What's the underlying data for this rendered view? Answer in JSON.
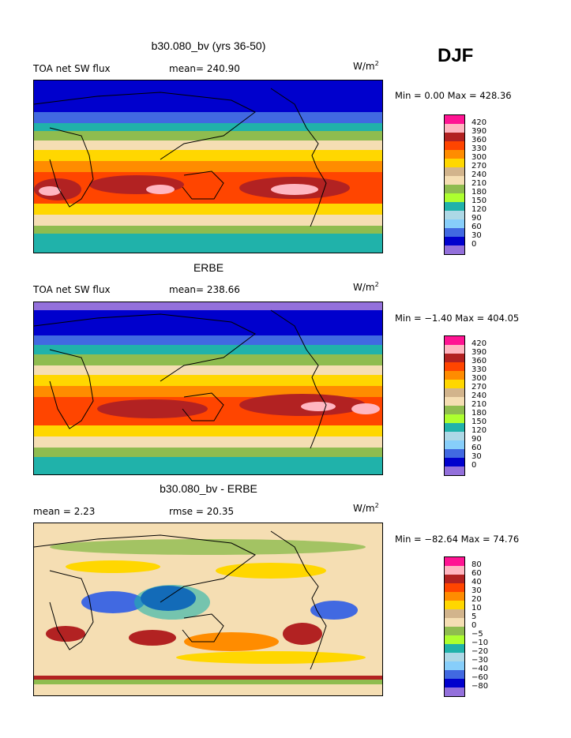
{
  "header": {
    "season": "DJF"
  },
  "colors": {
    "p1": [
      "#ff1493",
      "#ffb6c1",
      "#b22222",
      "#ff4500",
      "#ff8c00",
      "#ffd700",
      "#d2b48c",
      "#f5deb3",
      "#8fbc4f",
      "#adff2f",
      "#20b2aa",
      "#add8e6",
      "#87cefa",
      "#4169e1",
      "#0000cd",
      "#9370db"
    ],
    "p3": [
      "#ff1493",
      "#ffb6c1",
      "#b22222",
      "#ff4500",
      "#ff8c00",
      "#ffd700",
      "#d2b48c",
      "#f5deb3",
      "#8fbc4f",
      "#adff2f",
      "#20b2aa",
      "#add8e6",
      "#87cefa",
      "#4169e1",
      "#0000cd",
      "#9370db"
    ]
  },
  "chart_data": [
    {
      "type": "heatmap",
      "title": "b30.080_bv (yrs 36-50)",
      "left_label": "TOA net SW flux",
      "stat_label": "mean= 240.90",
      "units": "W/m",
      "units_sup": "2",
      "minmax": "Min =   0.00 Max = 428.36",
      "min": 0.0,
      "max": 428.36,
      "mean": 240.9,
      "levels": [
        "420",
        "390",
        "360",
        "330",
        "300",
        "270",
        "240",
        "210",
        "180",
        "150",
        "120",
        "90",
        "60",
        "30",
        "0"
      ]
    },
    {
      "type": "heatmap",
      "title": "ERBE",
      "left_label": "TOA net SW flux",
      "stat_label": "mean= 238.66",
      "units": "W/m",
      "units_sup": "2",
      "minmax": "Min =  −1.40 Max = 404.05",
      "min": -1.4,
      "max": 404.05,
      "mean": 238.66,
      "levels": [
        "420",
        "390",
        "360",
        "330",
        "300",
        "270",
        "240",
        "210",
        "180",
        "150",
        "120",
        "90",
        "60",
        "30",
        "0"
      ]
    },
    {
      "type": "heatmap",
      "title": "b30.080_bv - ERBE",
      "left_label": "mean =    2.23",
      "stat_label": "rmse =  20.35",
      "units": "W/m",
      "units_sup": "2",
      "minmax": "Min = −82.64 Max =  74.76",
      "min": -82.64,
      "max": 74.76,
      "mean": 2.23,
      "rmse": 20.35,
      "levels": [
        "80",
        "60",
        "40",
        "30",
        "20",
        "10",
        "5",
        "0",
        "−5",
        "−10",
        "−20",
        "−30",
        "−40",
        "−60",
        "−80"
      ]
    }
  ]
}
